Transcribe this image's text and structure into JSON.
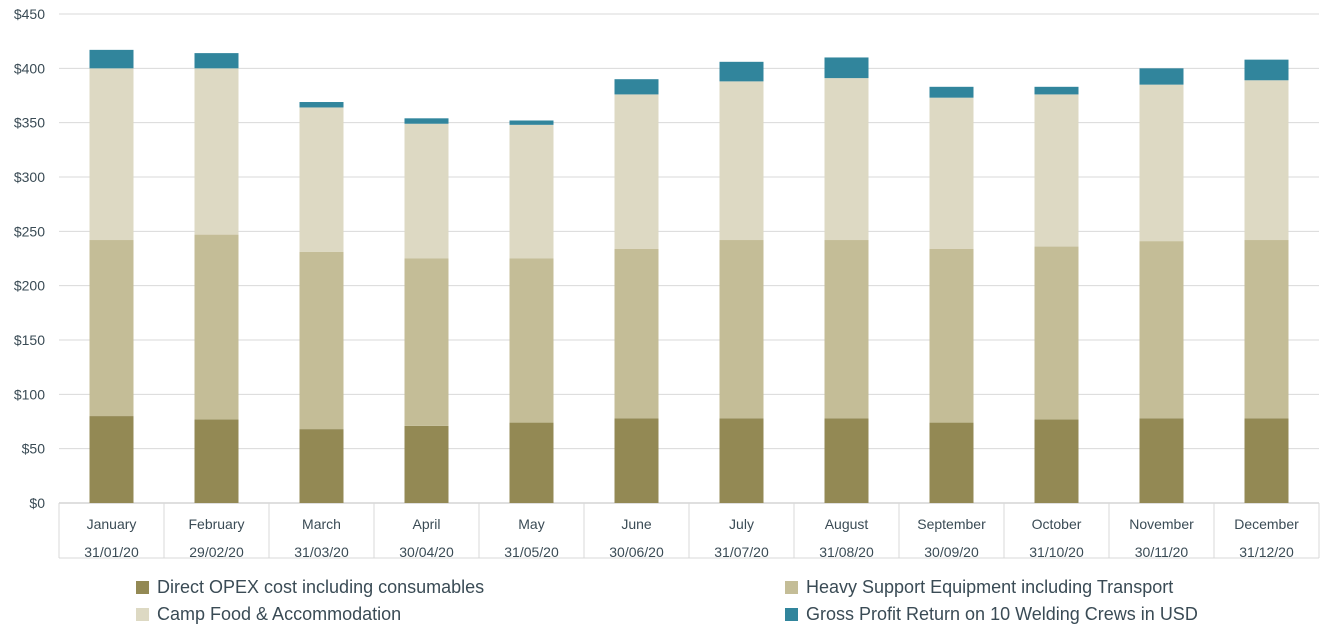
{
  "chart_data": {
    "type": "bar",
    "stacked": true,
    "categories": [
      "January",
      "February",
      "March",
      "April",
      "May",
      "June",
      "July",
      "August",
      "September",
      "October",
      "November",
      "December"
    ],
    "dates": [
      "31/01/20",
      "29/02/20",
      "31/03/20",
      "30/04/20",
      "31/05/20",
      "30/06/20",
      "31/07/20",
      "31/08/20",
      "30/09/20",
      "31/10/20",
      "30/11/20",
      "31/12/20"
    ],
    "series": [
      {
        "name": "Direct OPEX cost including consumables",
        "color": "#938954",
        "values": [
          80,
          77,
          68,
          71,
          74,
          78,
          78,
          78,
          74,
          77,
          78,
          78
        ]
      },
      {
        "name": "Heavy Support Equipment including Transport",
        "color": "#c4bd97",
        "values": [
          162,
          170,
          163,
          154,
          151,
          156,
          164,
          164,
          160,
          159,
          163,
          164
        ]
      },
      {
        "name": "Camp Food & Accommodation",
        "color": "#ddd9c3",
        "values": [
          158,
          153,
          133,
          124,
          123,
          142,
          146,
          149,
          139,
          140,
          144,
          147
        ]
      },
      {
        "name": "Gross Profit Return on 10 Welding Crews in USD",
        "color": "#31859c",
        "values": [
          17,
          14,
          5,
          5,
          4,
          14,
          18,
          19,
          10,
          7,
          15,
          19
        ]
      }
    ],
    "ylim": [
      0,
      450
    ],
    "yticks": [
      0,
      50,
      100,
      150,
      200,
      250,
      300,
      350,
      400,
      450
    ],
    "ytick_labels": [
      "$0",
      "$50",
      "$100",
      "$150",
      "$200",
      "$250",
      "$300",
      "$350",
      "$400",
      "$450"
    ],
    "grid": true,
    "legend_position": "bottom"
  }
}
